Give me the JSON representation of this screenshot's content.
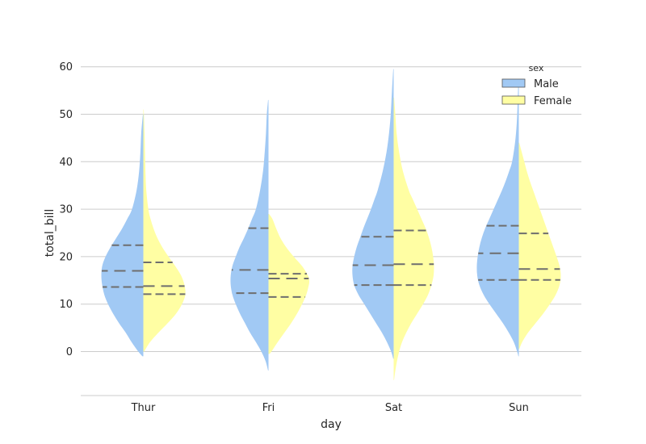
{
  "chart_data": {
    "type": "violin",
    "split": true,
    "inner": "quartile",
    "title": "",
    "xlabel": "day",
    "ylabel": "total_bill",
    "categories": [
      "Thur",
      "Fri",
      "Sat",
      "Sun"
    ],
    "ylim": [
      -9.5,
      62
    ],
    "yticks": [
      0,
      10,
      20,
      30,
      40,
      50,
      60
    ],
    "grid": "horizontal",
    "legend": {
      "title": "sex",
      "placement": "top-right"
    },
    "series": [
      {
        "name": "Male",
        "color": "#a1c9f4",
        "side": "left",
        "violins": [
          {
            "category": "Thur",
            "min": -1,
            "max": 50,
            "quartiles": [
              13.6,
              17.0,
              22.4
            ],
            "profile": [
              [
                -1,
                0.02
              ],
              [
                0,
                0.12
              ],
              [
                2,
                0.28
              ],
              [
                4,
                0.42
              ],
              [
                6,
                0.58
              ],
              [
                8,
                0.72
              ],
              [
                10,
                0.84
              ],
              [
                12,
                0.93
              ],
              [
                14,
                0.98
              ],
              [
                16,
                1.0
              ],
              [
                18,
                0.98
              ],
              [
                20,
                0.9
              ],
              [
                22,
                0.78
              ],
              [
                24,
                0.64
              ],
              [
                26,
                0.5
              ],
              [
                28,
                0.38
              ],
              [
                30,
                0.27
              ],
              [
                34,
                0.16
              ],
              [
                38,
                0.1
              ],
              [
                42,
                0.07
              ],
              [
                46,
                0.05
              ],
              [
                50,
                0.01
              ]
            ]
          },
          {
            "category": "Fri",
            "min": -4,
            "max": 53,
            "quartiles": [
              12.3,
              17.2,
              26.0
            ],
            "profile": [
              [
                -4,
                0.01
              ],
              [
                -2,
                0.07
              ],
              [
                0,
                0.17
              ],
              [
                2,
                0.3
              ],
              [
                4,
                0.44
              ],
              [
                6,
                0.56
              ],
              [
                8,
                0.68
              ],
              [
                10,
                0.78
              ],
              [
                12,
                0.86
              ],
              [
                14,
                0.9
              ],
              [
                16,
                0.9
              ],
              [
                18,
                0.86
              ],
              [
                20,
                0.78
              ],
              [
                22,
                0.69
              ],
              [
                24,
                0.58
              ],
              [
                26,
                0.48
              ],
              [
                28,
                0.39
              ],
              [
                30,
                0.3
              ],
              [
                34,
                0.2
              ],
              [
                38,
                0.13
              ],
              [
                42,
                0.09
              ],
              [
                46,
                0.06
              ],
              [
                50,
                0.04
              ],
              [
                53,
                0.01
              ]
            ]
          },
          {
            "category": "Sat",
            "min": -1.5,
            "max": 59.5,
            "quartiles": [
              14.0,
              18.2,
              24.2
            ],
            "profile": [
              [
                -1.5,
                0.01
              ],
              [
                0,
                0.06
              ],
              [
                2,
                0.16
              ],
              [
                4,
                0.28
              ],
              [
                6,
                0.42
              ],
              [
                8,
                0.56
              ],
              [
                10,
                0.7
              ],
              [
                12,
                0.84
              ],
              [
                14,
                0.94
              ],
              [
                16,
                0.98
              ],
              [
                18,
                0.98
              ],
              [
                20,
                0.94
              ],
              [
                22,
                0.88
              ],
              [
                24,
                0.8
              ],
              [
                26,
                0.72
              ],
              [
                28,
                0.63
              ],
              [
                30,
                0.54
              ],
              [
                32,
                0.46
              ],
              [
                34,
                0.38
              ],
              [
                38,
                0.26
              ],
              [
                42,
                0.17
              ],
              [
                46,
                0.11
              ],
              [
                50,
                0.07
              ],
              [
                55,
                0.04
              ],
              [
                59.5,
                0.01
              ]
            ]
          },
          {
            "category": "Sun",
            "min": -1,
            "max": 57,
            "quartiles": [
              15.1,
              20.7,
              26.5
            ],
            "profile": [
              [
                -1,
                0.01
              ],
              [
                0,
                0.04
              ],
              [
                2,
                0.12
              ],
              [
                4,
                0.24
              ],
              [
                6,
                0.38
              ],
              [
                8,
                0.54
              ],
              [
                10,
                0.7
              ],
              [
                12,
                0.84
              ],
              [
                14,
                0.94
              ],
              [
                16,
                0.99
              ],
              [
                18,
                1.0
              ],
              [
                20,
                0.98
              ],
              [
                22,
                0.94
              ],
              [
                24,
                0.88
              ],
              [
                26,
                0.8
              ],
              [
                28,
                0.7
              ],
              [
                30,
                0.6
              ],
              [
                32,
                0.5
              ],
              [
                34,
                0.4
              ],
              [
                36,
                0.31
              ],
              [
                38,
                0.23
              ],
              [
                40,
                0.16
              ],
              [
                44,
                0.09
              ],
              [
                48,
                0.05
              ],
              [
                52,
                0.03
              ],
              [
                57,
                0.01
              ]
            ]
          }
        ]
      },
      {
        "name": "Female",
        "color": "#fffea3",
        "side": "right",
        "violins": [
          {
            "category": "Thur",
            "min": 0,
            "max": 51,
            "quartiles": [
              12.1,
              13.8,
              18.8
            ],
            "profile": [
              [
                0,
                0.02
              ],
              [
                2,
                0.16
              ],
              [
                4,
                0.36
              ],
              [
                6,
                0.58
              ],
              [
                8,
                0.78
              ],
              [
                10,
                0.92
              ],
              [
                12,
                1.0
              ],
              [
                14,
                0.98
              ],
              [
                16,
                0.9
              ],
              [
                18,
                0.76
              ],
              [
                20,
                0.6
              ],
              [
                22,
                0.45
              ],
              [
                24,
                0.33
              ],
              [
                26,
                0.24
              ],
              [
                28,
                0.17
              ],
              [
                30,
                0.12
              ],
              [
                34,
                0.07
              ],
              [
                38,
                0.05
              ],
              [
                42,
                0.04
              ],
              [
                46,
                0.03
              ],
              [
                51,
                0.01
              ]
            ]
          },
          {
            "category": "Fri",
            "min": -0.5,
            "max": 29,
            "quartiles": [
              11.5,
              15.4,
              16.4
            ],
            "profile": [
              [
                -0.5,
                0.02
              ],
              [
                0,
                0.07
              ],
              [
                2,
                0.22
              ],
              [
                4,
                0.38
              ],
              [
                6,
                0.54
              ],
              [
                8,
                0.68
              ],
              [
                10,
                0.8
              ],
              [
                12,
                0.9
              ],
              [
                14,
                0.96
              ],
              [
                15,
                0.97
              ],
              [
                16,
                0.94
              ],
              [
                18,
                0.8
              ],
              [
                20,
                0.6
              ],
              [
                22,
                0.42
              ],
              [
                24,
                0.28
              ],
              [
                26,
                0.18
              ],
              [
                28,
                0.09
              ],
              [
                29,
                0.01
              ]
            ]
          },
          {
            "category": "Sat",
            "min": -6,
            "max": 53.5,
            "quartiles": [
              14.0,
              18.4,
              25.5
            ],
            "profile": [
              [
                -6,
                0.01
              ],
              [
                -4,
                0.04
              ],
              [
                -2,
                0.08
              ],
              [
                0,
                0.13
              ],
              [
                2,
                0.2
              ],
              [
                4,
                0.3
              ],
              [
                6,
                0.42
              ],
              [
                8,
                0.56
              ],
              [
                10,
                0.7
              ],
              [
                12,
                0.82
              ],
              [
                14,
                0.9
              ],
              [
                16,
                0.95
              ],
              [
                18,
                0.96
              ],
              [
                20,
                0.94
              ],
              [
                22,
                0.9
              ],
              [
                24,
                0.84
              ],
              [
                26,
                0.76
              ],
              [
                28,
                0.66
              ],
              [
                30,
                0.56
              ],
              [
                32,
                0.46
              ],
              [
                34,
                0.36
              ],
              [
                38,
                0.22
              ],
              [
                42,
                0.13
              ],
              [
                46,
                0.07
              ],
              [
                50,
                0.04
              ],
              [
                53.5,
                0.01
              ]
            ]
          },
          {
            "category": "Sun",
            "min": 0.5,
            "max": 44,
            "quartiles": [
              15.1,
              17.4,
              24.9
            ],
            "profile": [
              [
                0.5,
                0.01
              ],
              [
                2,
                0.08
              ],
              [
                4,
                0.22
              ],
              [
                6,
                0.4
              ],
              [
                8,
                0.58
              ],
              [
                10,
                0.74
              ],
              [
                12,
                0.88
              ],
              [
                14,
                0.97
              ],
              [
                16,
                1.0
              ],
              [
                18,
                0.97
              ],
              [
                20,
                0.9
              ],
              [
                22,
                0.82
              ],
              [
                24,
                0.74
              ],
              [
                26,
                0.66
              ],
              [
                28,
                0.58
              ],
              [
                30,
                0.5
              ],
              [
                32,
                0.42
              ],
              [
                34,
                0.34
              ],
              [
                36,
                0.26
              ],
              [
                38,
                0.19
              ],
              [
                40,
                0.13
              ],
              [
                42,
                0.07
              ],
              [
                44,
                0.01
              ]
            ]
          }
        ]
      }
    ]
  }
}
